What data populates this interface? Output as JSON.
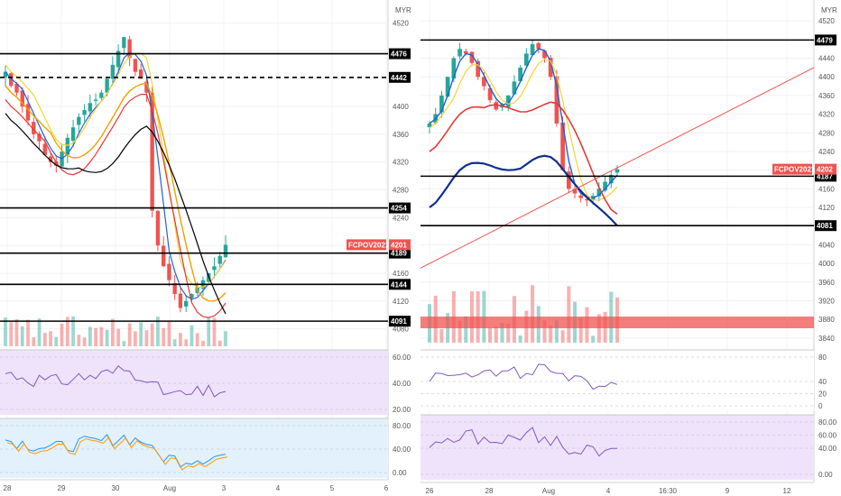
{
  "currency": "MYR",
  "colors": {
    "up": "#26a69a",
    "down": "#ef5350",
    "level": "#000000",
    "ma_yellow": "#f5d33a",
    "ma_orange": "#f0a000",
    "ma_red": "#e53935",
    "ma_black": "#000000",
    "ma_blue": "#1e63d6",
    "ma_navy": "#0d2f8f",
    "rsi_bg": "#efe3fb",
    "stoch_bg": "#e3f1fc",
    "rsi_line": "#7e57c2"
  },
  "chart_data": [
    {
      "type": "candlestick",
      "name": "left panel",
      "currency": "MYR",
      "y_ticks": [
        4080,
        4120,
        4160,
        4200,
        4240,
        4280,
        4320,
        4360,
        4400,
        4440,
        4480,
        4520
      ],
      "ylim": [
        4060,
        4530
      ],
      "x_ticks": [
        "28",
        "29",
        "30",
        "Aug",
        "3",
        "4",
        "5",
        "6"
      ],
      "horizontal_levels": [
        4476,
        4442,
        4254,
        4189,
        4144,
        4091
      ],
      "dashed_levels": [
        4442
      ],
      "price_tag": {
        "label": "FCPOV2021",
        "value": 4201
      },
      "approx_close_series": [
        4450,
        4430,
        4420,
        4400,
        4380,
        4360,
        4350,
        4330,
        4320,
        4315,
        4335,
        4355,
        4370,
        4385,
        4395,
        4405,
        4410,
        4420,
        4440,
        4460,
        4480,
        4500,
        4470,
        4450,
        4440,
        4420,
        4250,
        4200,
        4170,
        4150,
        4130,
        4110,
        4120,
        4130,
        4140,
        4150,
        4160,
        4170,
        4185,
        4201
      ],
      "sub_panels": [
        {
          "type": "rsi",
          "y_ticks": [
            20.0,
            40.0,
            60.0
          ]
        },
        {
          "type": "stochastic",
          "y_ticks": [
            0.0,
            40.0,
            80.0
          ]
        }
      ]
    },
    {
      "type": "candlestick",
      "name": "right panel",
      "currency": "MYR",
      "y_ticks": [
        3840,
        3880,
        3920,
        3960,
        4000,
        4040,
        4080,
        4120,
        4160,
        4200,
        4240,
        4280,
        4320,
        4360,
        4400,
        4440,
        4480,
        4520
      ],
      "ylim": [
        3830,
        4530
      ],
      "x_ticks": [
        "26",
        "28",
        "Aug",
        "4",
        "16:30",
        "9",
        "12"
      ],
      "horizontal_levels": [
        4479,
        4187,
        4081
      ],
      "price_tag": {
        "label": "FCPOV2021",
        "value": 4202
      },
      "trendline": {
        "from": [
          0,
          3990
        ],
        "to": [
          1,
          4420
        ]
      },
      "approx_close_series": [
        4300,
        4320,
        4360,
        4400,
        4440,
        4460,
        4450,
        4430,
        4400,
        4380,
        4350,
        4330,
        4340,
        4360,
        4390,
        4420,
        4450,
        4470,
        4460,
        4440,
        4400,
        4300,
        4200,
        4160,
        4150,
        4140,
        4135,
        4145,
        4160,
        4175,
        4190,
        4202
      ],
      "sub_panels": [
        {
          "type": "macd",
          "y_ticks": [
            0,
            20,
            40,
            80
          ]
        },
        {
          "type": "rsi",
          "y_ticks": [
            0.0,
            40.0,
            60.0,
            80.0
          ]
        }
      ]
    }
  ]
}
